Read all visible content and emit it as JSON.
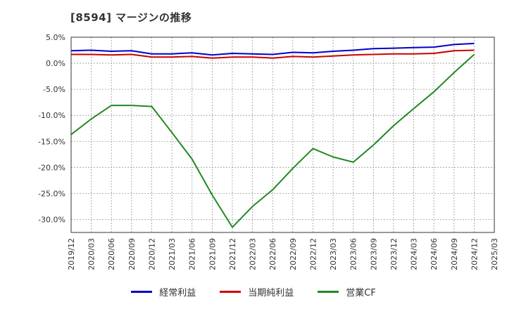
{
  "chart_data": {
    "type": "line",
    "title": "[8594]  マージンの推移",
    "xlabel": "",
    "ylabel": "",
    "ylim": [
      -32.5,
      5.0
    ],
    "y_ticks": [
      5.0,
      0.0,
      -5.0,
      -10.0,
      -15.0,
      -20.0,
      -25.0,
      -30.0
    ],
    "y_tick_labels": [
      "5.0%",
      "0.0%",
      "-5.0%",
      "-10.0%",
      "-15.0%",
      "-20.0%",
      "-25.0%",
      "-30.0%"
    ],
    "categories": [
      "2019/12",
      "2020/03",
      "2020/06",
      "2020/09",
      "2020/12",
      "2021/03",
      "2021/06",
      "2021/09",
      "2021/12",
      "2022/03",
      "2022/06",
      "2022/09",
      "2022/12",
      "2023/03",
      "2023/06",
      "2023/09",
      "2023/12",
      "2024/03",
      "2024/06",
      "2024/09",
      "2024/12",
      "2025/03"
    ],
    "grid": true,
    "legend_position": "bottom",
    "series": [
      {
        "name": "経常利益",
        "color": "#0000cc",
        "values": [
          2.4,
          2.5,
          2.3,
          2.4,
          1.8,
          1.8,
          2.0,
          1.6,
          1.9,
          1.8,
          1.7,
          2.1,
          2.0,
          2.3,
          2.5,
          2.8,
          2.9,
          3.0,
          3.1,
          3.6,
          3.8,
          null
        ]
      },
      {
        "name": "当期純利益",
        "color": "#cc0000",
        "values": [
          1.7,
          1.7,
          1.6,
          1.7,
          1.2,
          1.2,
          1.3,
          1.0,
          1.2,
          1.2,
          1.0,
          1.3,
          1.2,
          1.4,
          1.6,
          1.7,
          1.8,
          1.8,
          1.9,
          2.4,
          2.5,
          null
        ]
      },
      {
        "name": "営業CF",
        "color": "#228822",
        "values": [
          -13.7,
          -10.7,
          -8.1,
          -8.1,
          -8.3,
          -13.3,
          -18.4,
          -25.3,
          -31.5,
          -27.5,
          -24.3,
          -20.2,
          -16.4,
          -18.0,
          -19.0,
          -15.7,
          -12.0,
          -8.7,
          -5.5,
          -1.8,
          1.7,
          null
        ]
      }
    ]
  }
}
